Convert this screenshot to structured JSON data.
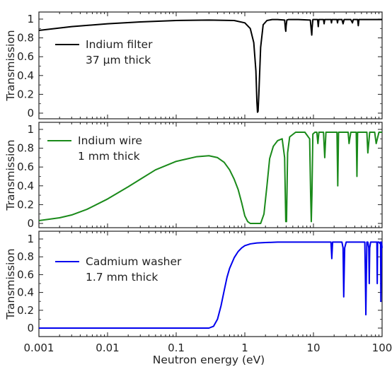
{
  "chart_data": [
    {
      "type": "line",
      "panel": "top",
      "xscale": "log",
      "xlim": [
        0.001,
        100
      ],
      "ylim": [
        0,
        1
      ],
      "ylabel": "Transmission",
      "yticks": [
        "0",
        "0.2",
        "0.4",
        "0.6",
        "0.8",
        "1"
      ],
      "series": [
        {
          "name": "Indium filter",
          "sublabel": "37 μm thick",
          "color": "#000000",
          "x": [
            0.001,
            0.003,
            0.01,
            0.03,
            0.1,
            0.3,
            0.7,
            1.0,
            1.2,
            1.35,
            1.45,
            1.5,
            1.53,
            1.56,
            1.6,
            1.7,
            1.85,
            2.1,
            2.5,
            3.0,
            3.8,
            3.9,
            3.95,
            4.0,
            4.1,
            4.3,
            6.0,
            9.0,
            9.3,
            9.45,
            9.55,
            9.8,
            11.5,
            11.75,
            12.0,
            14,
            14.3,
            14.6,
            18,
            18.3,
            18.6,
            22,
            22.4,
            22.8,
            26,
            27,
            28,
            35,
            37,
            38,
            44,
            45,
            46,
            50,
            63,
            75,
            85,
            95,
            100
          ],
          "y": [
            0.88,
            0.92,
            0.95,
            0.97,
            0.985,
            0.99,
            0.985,
            0.96,
            0.9,
            0.75,
            0.45,
            0.12,
            0.01,
            0.02,
            0.2,
            0.7,
            0.94,
            0.985,
            0.995,
            0.995,
            0.99,
            0.9,
            0.87,
            0.93,
            0.99,
            0.995,
            0.995,
            0.99,
            0.88,
            0.83,
            0.9,
            0.995,
            0.995,
            0.92,
            0.995,
            0.995,
            0.95,
            0.995,
            0.995,
            0.96,
            0.995,
            0.995,
            0.96,
            0.995,
            0.995,
            0.95,
            0.995,
            0.995,
            0.96,
            0.995,
            0.995,
            0.93,
            0.995,
            0.995,
            0.995,
            0.995,
            0.995,
            0.995,
            0.995
          ]
        }
      ]
    },
    {
      "type": "line",
      "panel": "middle",
      "xscale": "log",
      "xlim": [
        0.001,
        100
      ],
      "ylim": [
        0,
        1
      ],
      "ylabel": "Transmission",
      "yticks": [
        "0",
        "0.2",
        "0.4",
        "0.6",
        "0.8",
        "1"
      ],
      "series": [
        {
          "name": "Indium wire",
          "sublabel": "1 mm thick",
          "color": "#1a8a1a",
          "x": [
            0.001,
            0.002,
            0.003,
            0.005,
            0.01,
            0.02,
            0.03,
            0.05,
            0.1,
            0.2,
            0.3,
            0.4,
            0.5,
            0.6,
            0.7,
            0.8,
            0.9,
            1.0,
            1.1,
            1.2,
            1.5,
            1.7,
            1.9,
            2.1,
            2.3,
            2.6,
            3.0,
            3.5,
            3.8,
            3.95,
            4.05,
            4.2,
            4.5,
            5.5,
            7.5,
            8.8,
            9.1,
            9.3,
            9.5,
            9.8,
            10.5,
            11.2,
            11.6,
            12.0,
            12.6,
            14,
            14.6,
            15.2,
            16,
            18.5,
            22,
            22.6,
            23.2,
            24,
            28,
            32,
            33,
            35,
            38,
            42,
            43,
            44,
            46,
            53,
            60,
            62,
            66,
            72,
            78,
            82,
            90,
            93,
            100
          ],
          "y": [
            0.03,
            0.06,
            0.09,
            0.15,
            0.26,
            0.39,
            0.47,
            0.57,
            0.66,
            0.71,
            0.72,
            0.7,
            0.65,
            0.57,
            0.47,
            0.36,
            0.22,
            0.08,
            0.02,
            0.0,
            0.0,
            0.0,
            0.1,
            0.4,
            0.69,
            0.82,
            0.88,
            0.9,
            0.7,
            0.02,
            0.02,
            0.75,
            0.92,
            0.97,
            0.97,
            0.9,
            0.3,
            0.02,
            0.3,
            0.95,
            0.97,
            0.97,
            0.85,
            0.97,
            0.97,
            0.97,
            0.7,
            0.97,
            0.97,
            0.97,
            0.97,
            0.4,
            0.97,
            0.97,
            0.97,
            0.97,
            0.85,
            0.97,
            0.97,
            0.97,
            0.5,
            0.97,
            0.97,
            0.97,
            0.97,
            0.75,
            0.97,
            0.97,
            0.97,
            0.85,
            0.97,
            0.97,
            0.97
          ]
        }
      ]
    },
    {
      "type": "line",
      "panel": "bottom",
      "xscale": "log",
      "xlim": [
        0.001,
        100
      ],
      "ylim": [
        0,
        1
      ],
      "xlabel": "Neutron energy (eV)",
      "ylabel": "Transmission",
      "xticks": [
        "0.001",
        "0.01",
        "0.1",
        "1",
        "10",
        "100"
      ],
      "yticks": [
        "0",
        "0.2",
        "0.4",
        "0.6",
        "0.8",
        "1"
      ],
      "series": [
        {
          "name": "Cadmium washer",
          "sublabel": "1.7 mm thick",
          "color": "#0000ee",
          "x": [
            0.001,
            0.01,
            0.1,
            0.3,
            0.35,
            0.4,
            0.45,
            0.5,
            0.55,
            0.6,
            0.7,
            0.8,
            0.9,
            1.0,
            1.2,
            1.5,
            2.0,
            3.0,
            5.0,
            10,
            17,
            18,
            18.5,
            19,
            20,
            26,
            27,
            27.6,
            28.5,
            30,
            40,
            50,
            56,
            57,
            58,
            59,
            60,
            62,
            64,
            65,
            66,
            68,
            70,
            80,
            84,
            85,
            86,
            88,
            90,
            93,
            95,
            96,
            98,
            100
          ],
          "y": [
            0.0,
            0.0,
            0.0,
            0.0,
            0.02,
            0.1,
            0.25,
            0.42,
            0.57,
            0.67,
            0.79,
            0.86,
            0.9,
            0.925,
            0.945,
            0.955,
            0.96,
            0.965,
            0.965,
            0.965,
            0.965,
            0.965,
            0.78,
            0.965,
            0.965,
            0.965,
            0.9,
            0.35,
            0.9,
            0.965,
            0.965,
            0.965,
            0.965,
            0.6,
            0.15,
            0.6,
            0.965,
            0.965,
            0.9,
            0.5,
            0.9,
            0.965,
            0.965,
            0.965,
            0.965,
            0.5,
            0.965,
            0.965,
            0.965,
            0.95,
            0.965,
            0.3,
            0.965,
            0.9
          ]
        }
      ]
    }
  ]
}
